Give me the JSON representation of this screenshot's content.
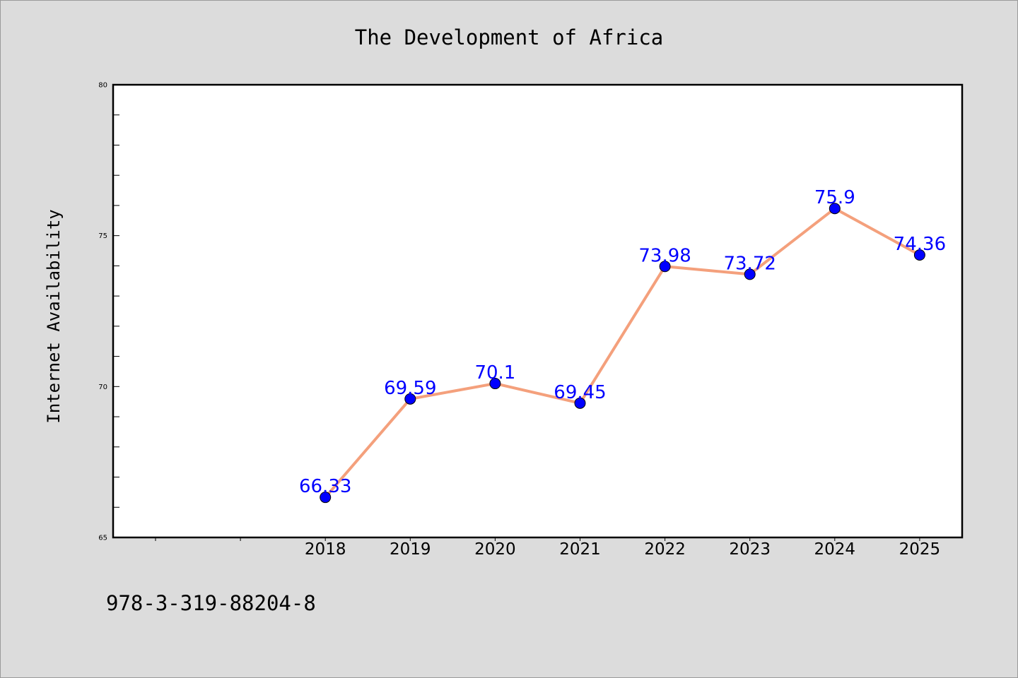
{
  "chart_data": {
    "type": "line",
    "title": "The Development of Africa",
    "xlabel": "",
    "ylabel": "Internet Availability",
    "categories": [
      "2018",
      "2019",
      "2020",
      "2021",
      "2022",
      "2023",
      "2024",
      "2025"
    ],
    "series": [
      {
        "values": [
          66.33,
          69.59,
          70.1,
          69.45,
          73.98,
          73.72,
          75.9,
          74.36
        ],
        "data_labels": [
          "66.33",
          "69.59",
          "70.1",
          "69.45",
          "73.98",
          "73.72",
          "75.9",
          "74.36"
        ],
        "line_color": "#f4a07c",
        "marker_color": "#0000ff"
      }
    ],
    "yticks": [
      "65",
      "70",
      "75",
      "80"
    ],
    "ylim": [
      65,
      80
    ],
    "grid": false,
    "plot_background": "#ffffff",
    "page_background": "#dcdcdc",
    "label_color": "#0000ff"
  },
  "footer": {
    "isbn": "978-3-319-88204-8"
  }
}
